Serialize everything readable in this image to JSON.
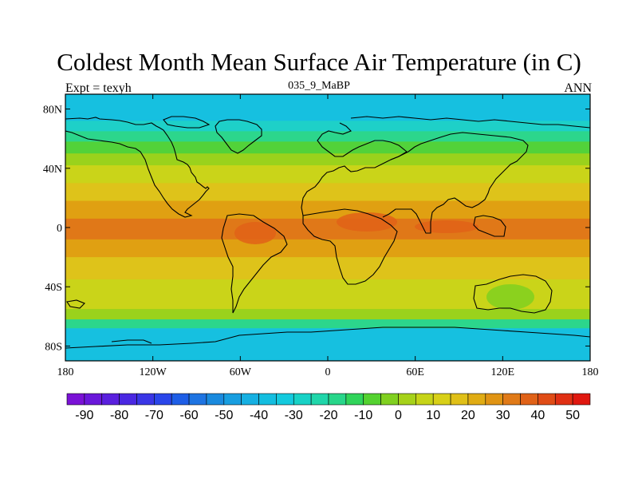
{
  "title": "Coldest Month Mean Surface Air Temperature (in C)",
  "subtitle_left": "Expt = texyh",
  "subtitle_center": "035_9_MaBP",
  "subtitle_right": "ANN",
  "map": {
    "projection": "cylindrical-equidistant",
    "lon_range": [
      -180,
      180
    ],
    "lat_range": [
      -90,
      90
    ],
    "lat_ticks": [
      {
        "value": 80,
        "label": "80N"
      },
      {
        "value": 40,
        "label": "40N"
      },
      {
        "value": 0,
        "label": "0"
      },
      {
        "value": -40,
        "label": "40S"
      },
      {
        "value": -80,
        "label": "80S"
      }
    ],
    "lon_ticks": [
      {
        "value": -180,
        "label": "180"
      },
      {
        "value": -120,
        "label": "120W"
      },
      {
        "value": -60,
        "label": "60W"
      },
      {
        "value": 0,
        "label": "0"
      },
      {
        "value": 60,
        "label": "60E"
      },
      {
        "value": 120,
        "label": "120E"
      },
      {
        "value": 180,
        "label": "180"
      }
    ],
    "temperature_bands_by_latitude": [
      {
        "lat": [
          72,
          90
        ],
        "range_c": [
          -30,
          -20
        ],
        "color": "#16c0e0"
      },
      {
        "lat": [
          65,
          72
        ],
        "range_c": [
          -20,
          -10
        ],
        "color": "#1ed0c8"
      },
      {
        "lat": [
          58,
          65
        ],
        "range_c": [
          -10,
          0
        ],
        "color": "#2cd68c"
      },
      {
        "lat": [
          50,
          58
        ],
        "range_c": [
          0,
          5
        ],
        "color": "#52d23a"
      },
      {
        "lat": [
          42,
          50
        ],
        "range_c": [
          5,
          15
        ],
        "color": "#9ad21c"
      },
      {
        "lat": [
          30,
          42
        ],
        "range_c": [
          15,
          20
        ],
        "color": "#cad419"
      },
      {
        "lat": [
          18,
          30
        ],
        "range_c": [
          20,
          25
        ],
        "color": "#dec31a"
      },
      {
        "lat": [
          6,
          18
        ],
        "range_c": [
          25,
          30
        ],
        "color": "#e0a012"
      },
      {
        "lat": [
          -8,
          6
        ],
        "range_c": [
          30,
          40
        ],
        "color": "#e07818"
      },
      {
        "lat": [
          -20,
          -8
        ],
        "range_c": [
          25,
          30
        ],
        "color": "#e0a012"
      },
      {
        "lat": [
          -35,
          -20
        ],
        "range_c": [
          20,
          25
        ],
        "color": "#dec31a"
      },
      {
        "lat": [
          -55,
          -35
        ],
        "range_c": [
          15,
          20
        ],
        "color": "#cad419"
      },
      {
        "lat": [
          -62,
          -55
        ],
        "range_c": [
          0,
          10
        ],
        "color": "#9ad21c"
      },
      {
        "lat": [
          -68,
          -62
        ],
        "range_c": [
          -10,
          0
        ],
        "color": "#2cd68c"
      },
      {
        "lat": [
          -90,
          -68
        ],
        "range_c": [
          -30,
          -20
        ],
        "color": "#16c0e0"
      }
    ]
  },
  "colorbar": {
    "colors": [
      "#7a12d6",
      "#6a18da",
      "#5a20de",
      "#4a28e2",
      "#3a36e6",
      "#2a46ea",
      "#1e5ee6",
      "#1e74e2",
      "#1a8ade",
      "#189ee0",
      "#16b0e2",
      "#14bee0",
      "#14cade",
      "#18d2c6",
      "#20d6aa",
      "#28d68a",
      "#30d45a",
      "#54d230",
      "#80d020",
      "#a6d21a",
      "#c6d418",
      "#d8d018",
      "#e0c018",
      "#e0ac14",
      "#e09414",
      "#e07a18",
      "#e06218",
      "#e04c16",
      "#e03014",
      "#e01810"
    ],
    "labels": [
      "-90",
      "-80",
      "-70",
      "-60",
      "-50",
      "-40",
      "-30",
      "-20",
      "-10",
      "0",
      "10",
      "20",
      "30",
      "40",
      "50"
    ]
  }
}
